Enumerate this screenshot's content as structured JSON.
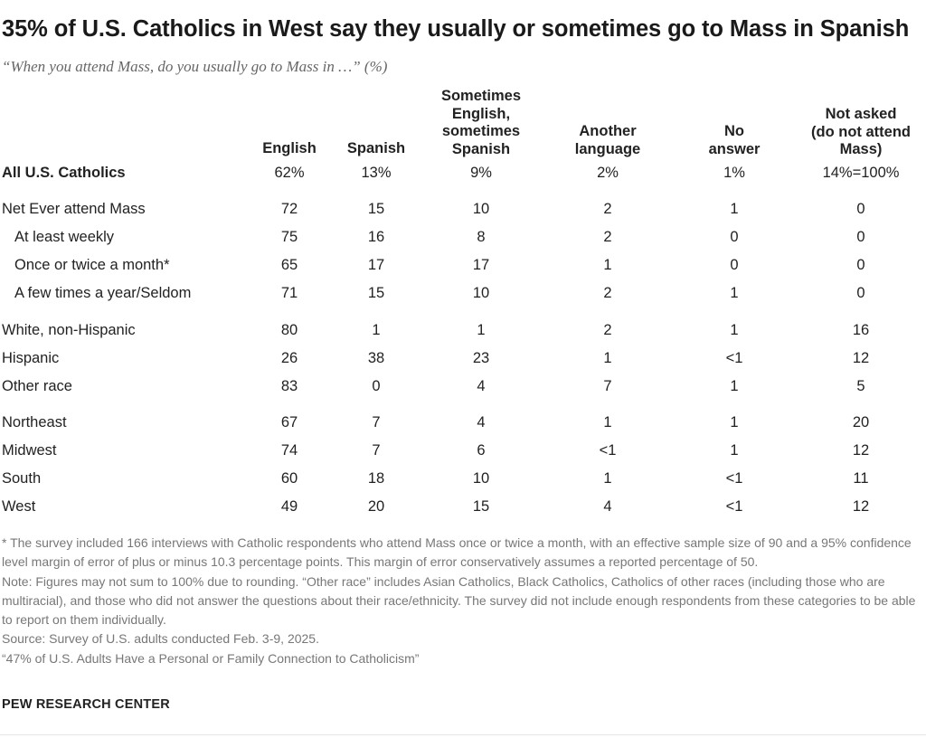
{
  "title": "35% of U.S. Catholics in West say they usually or sometimes go to Mass in Spanish",
  "subtitle": "“When you attend Mass, do you usually go to Mass in …” (%)",
  "chart_data": {
    "type": "table",
    "columns": [
      "English",
      "Spanish",
      "Sometimes English, sometimes Spanish",
      "Another language",
      "No answer",
      "Not asked (do not attend Mass)"
    ],
    "rows": [
      {
        "label": "All U.S. Catholics",
        "values": [
          "62%",
          "13%",
          "9%",
          "2%",
          "1%",
          "14%=100%"
        ]
      },
      {
        "label": "Net Ever attend Mass",
        "values": [
          "72",
          "15",
          "10",
          "2",
          "1",
          "0"
        ]
      },
      {
        "label": "At least weekly",
        "values": [
          "75",
          "16",
          "8",
          "2",
          "0",
          "0"
        ]
      },
      {
        "label": "Once or twice a month*",
        "values": [
          "65",
          "17",
          "17",
          "1",
          "0",
          "0"
        ]
      },
      {
        "label": "A few times a year/Seldom",
        "values": [
          "71",
          "15",
          "10",
          "2",
          "1",
          "0"
        ]
      },
      {
        "label": "White, non-Hispanic",
        "values": [
          "80",
          "1",
          "1",
          "2",
          "1",
          "16"
        ]
      },
      {
        "label": "Hispanic",
        "values": [
          "26",
          "38",
          "23",
          "1",
          "<1",
          "12"
        ]
      },
      {
        "label": "Other race",
        "values": [
          "83",
          "0",
          "4",
          "7",
          "1",
          "5"
        ]
      },
      {
        "label": "Northeast",
        "values": [
          "67",
          "7",
          "4",
          "1",
          "1",
          "20"
        ]
      },
      {
        "label": "Midwest",
        "values": [
          "74",
          "7",
          "6",
          "<1",
          "1",
          "12"
        ]
      },
      {
        "label": "South",
        "values": [
          "60",
          "18",
          "10",
          "1",
          "<1",
          "11"
        ]
      },
      {
        "label": "West",
        "values": [
          "49",
          "20",
          "15",
          "4",
          "<1",
          "12"
        ]
      }
    ]
  },
  "headers": {
    "english": "English",
    "spanish": "Spanish",
    "sometimes": [
      "Sometimes",
      "English,",
      "sometimes",
      "Spanish"
    ],
    "another": [
      "Another",
      "language"
    ],
    "noanswer": [
      "No",
      "answer"
    ],
    "notasked": [
      "Not asked",
      "(do not attend",
      "Mass)"
    ]
  },
  "notes": {
    "footnote": "* The survey included 166 interviews with Catholic respondents who attend Mass once or twice a month, with an effective sample size of 90 and a 95% confidence level margin of error of plus or minus 10.3 percentage points. This margin of error conservatively assumes a reported percentage of 50.",
    "note": "Note: Figures may not sum to 100% due to rounding. “Other race” includes Asian Catholics, Black Catholics, Catholics of other races (including those who are multiracial), and those who did not answer the questions about their race/ethnicity. The survey did not include enough respondents from these categories to be able to report on them individually.",
    "source": "Source: Survey of U.S. adults conducted Feb. 3-9, 2025.",
    "report": "“47% of U.S. Adults Have a Personal or Family Connection to Catholicism”"
  },
  "brand": "PEW RESEARCH CENTER"
}
